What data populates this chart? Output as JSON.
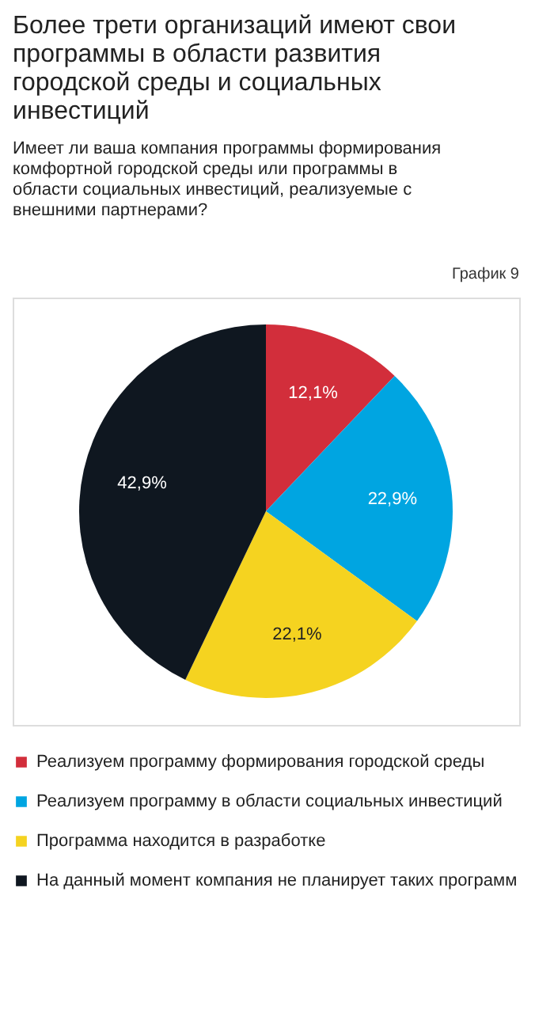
{
  "chart_data": {
    "type": "pie",
    "title": "Более трети организаций имеют свои программы в области развития городской среды и социальных инвестиций",
    "subtitle": "Имеет ли ваша компания программы формирования комфортной городской среды или программы в области социальных инвестиций, реализуемые с внешними партнерами?",
    "annotations": [
      "График 9"
    ],
    "categories": [
      "Реализуем программу формирования городской среды",
      "Реализуем программу в области социальных инвестиций",
      "Программа находится в разработке",
      "На данный момент компания не планирует таких программ"
    ],
    "values": [
      12.1,
      22.9,
      22.1,
      42.9
    ],
    "value_labels": [
      "12,1%",
      "22,9%",
      "22,1%",
      "42,9%"
    ],
    "colors": [
      "#d22e3b",
      "#00a5e1",
      "#f5d320",
      "#0f1720"
    ],
    "legend": "bottom"
  }
}
